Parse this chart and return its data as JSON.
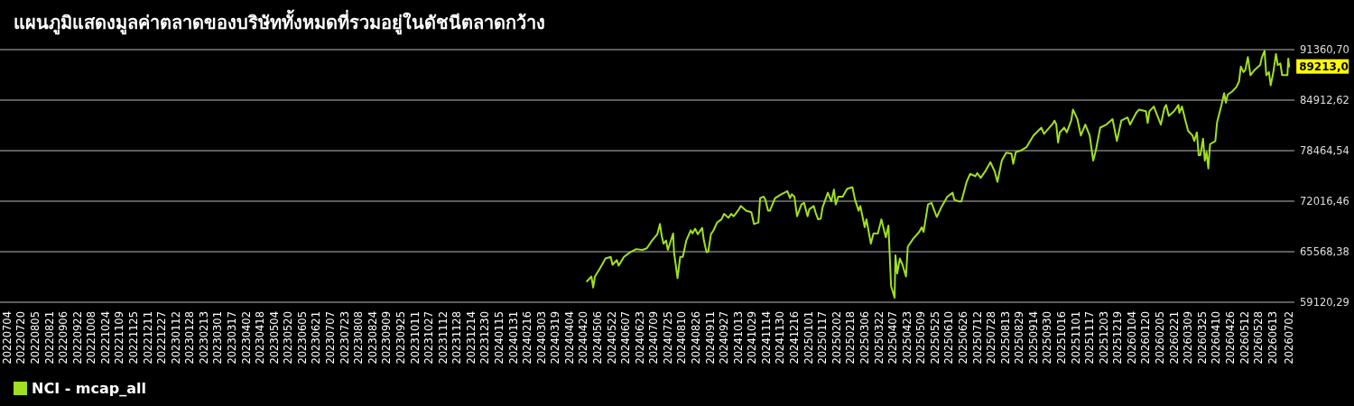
{
  "chart_data": {
    "type": "line",
    "title": "แผนภูมิแสดงมูลค่าตลาดของบริษัททั้งหมดที่รวมอยู่ในดัชนีตลาดกว้าง",
    "xlim": [
      "2022-06-26",
      "2026-07-08"
    ],
    "ylim": [
      59120.29,
      91360.7
    ],
    "yticks": [
      {
        "value": 59120.29,
        "label": "59120,29"
      },
      {
        "value": 65568.38,
        "label": "65568,38"
      },
      {
        "value": 72016.46,
        "label": "72016,46"
      },
      {
        "value": 78464.54,
        "label": "78464,54"
      },
      {
        "value": 84912.62,
        "label": "84912,62"
      },
      {
        "value": 91360.7,
        "label": "91360,70"
      }
    ],
    "xticks": [
      {
        "value": "2022-07-04",
        "label": "20220704"
      },
      {
        "value": "2022-07-20",
        "label": "20220720"
      },
      {
        "value": "2022-08-05",
        "label": "20220805"
      },
      {
        "value": "2022-08-21",
        "label": "20220821"
      },
      {
        "value": "2022-09-06",
        "label": "20220906"
      },
      {
        "value": "2022-09-22",
        "label": "20220922"
      },
      {
        "value": "2022-10-08",
        "label": "20221008"
      },
      {
        "value": "2022-10-24",
        "label": "20221024"
      },
      {
        "value": "2022-11-09",
        "label": "20221109"
      },
      {
        "value": "2022-11-25",
        "label": "20221125"
      },
      {
        "value": "2022-12-11",
        "label": "20221211"
      },
      {
        "value": "2022-12-27",
        "label": "20221227"
      },
      {
        "value": "2023-01-12",
        "label": "20230112"
      },
      {
        "value": "2023-01-28",
        "label": "20230128"
      },
      {
        "value": "2023-02-13",
        "label": "20230213"
      },
      {
        "value": "2023-03-01",
        "label": "20230301"
      },
      {
        "value": "2023-03-17",
        "label": "20230317"
      },
      {
        "value": "2023-04-02",
        "label": "20230402"
      },
      {
        "value": "2023-04-18",
        "label": "20230418"
      },
      {
        "value": "2023-05-04",
        "label": "20230504"
      },
      {
        "value": "2023-05-20",
        "label": "20230520"
      },
      {
        "value": "2023-06-05",
        "label": "20230605"
      },
      {
        "value": "2023-06-21",
        "label": "20230621"
      },
      {
        "value": "2023-07-07",
        "label": "20230707"
      },
      {
        "value": "2023-07-23",
        "label": "20230723"
      },
      {
        "value": "2023-08-08",
        "label": "20230808"
      },
      {
        "value": "2023-08-24",
        "label": "20230824"
      },
      {
        "value": "2023-09-09",
        "label": "20230909"
      },
      {
        "value": "2023-09-25",
        "label": "20230925"
      },
      {
        "value": "2023-10-11",
        "label": "20231011"
      },
      {
        "value": "2023-10-27",
        "label": "20231027"
      },
      {
        "value": "2023-11-12",
        "label": "20231112"
      },
      {
        "value": "2023-11-28",
        "label": "20231128"
      },
      {
        "value": "2023-12-14",
        "label": "20231214"
      },
      {
        "value": "2023-12-30",
        "label": "20231230"
      },
      {
        "value": "2024-01-15",
        "label": "20240115"
      },
      {
        "value": "2024-01-31",
        "label": "20240131"
      },
      {
        "value": "2024-02-16",
        "label": "20240216"
      },
      {
        "value": "2024-03-03",
        "label": "20240303"
      },
      {
        "value": "2024-03-19",
        "label": "20240319"
      },
      {
        "value": "2024-04-04",
        "label": "20240404"
      },
      {
        "value": "2024-04-20",
        "label": "20240420"
      },
      {
        "value": "2024-05-06",
        "label": "20240506"
      },
      {
        "value": "2024-05-22",
        "label": "20240522"
      },
      {
        "value": "2024-06-07",
        "label": "20240607"
      },
      {
        "value": "2024-06-23",
        "label": "20240623"
      },
      {
        "value": "2024-07-09",
        "label": "20240709"
      },
      {
        "value": "2024-07-25",
        "label": "20240725"
      },
      {
        "value": "2024-08-10",
        "label": "20240810"
      },
      {
        "value": "2024-08-26",
        "label": "20240826"
      },
      {
        "value": "2024-09-11",
        "label": "20240911"
      },
      {
        "value": "2024-09-27",
        "label": "20240927"
      },
      {
        "value": "2024-10-13",
        "label": "20241013"
      },
      {
        "value": "2024-10-29",
        "label": "20241029"
      },
      {
        "value": "2024-11-14",
        "label": "20241114"
      },
      {
        "value": "2024-11-30",
        "label": "20241130"
      },
      {
        "value": "2024-12-16",
        "label": "20241216"
      },
      {
        "value": "2025-01-01",
        "label": "20250101"
      },
      {
        "value": "2025-01-17",
        "label": "20250117"
      },
      {
        "value": "2025-02-02",
        "label": "20250202"
      },
      {
        "value": "2025-02-18",
        "label": "20250218"
      },
      {
        "value": "2025-03-06",
        "label": "20250306"
      },
      {
        "value": "2025-03-22",
        "label": "20250322"
      },
      {
        "value": "2025-04-07",
        "label": "20250407"
      },
      {
        "value": "2025-04-23",
        "label": "20250423"
      },
      {
        "value": "2025-05-09",
        "label": "20250509"
      },
      {
        "value": "2025-05-25",
        "label": "20250525"
      },
      {
        "value": "2025-06-10",
        "label": "20250610"
      },
      {
        "value": "2025-06-26",
        "label": "20250626"
      },
      {
        "value": "2025-07-12",
        "label": "20250712"
      },
      {
        "value": "2025-07-28",
        "label": "20250728"
      },
      {
        "value": "2025-08-13",
        "label": "20250813"
      },
      {
        "value": "2025-08-29",
        "label": "20250829"
      },
      {
        "value": "2025-09-14",
        "label": "20250914"
      },
      {
        "value": "2025-09-30",
        "label": "20250930"
      },
      {
        "value": "2025-10-16",
        "label": "20251016"
      },
      {
        "value": "2025-11-01",
        "label": "20251101"
      },
      {
        "value": "2025-11-17",
        "label": "20251117"
      },
      {
        "value": "2025-12-03",
        "label": "20251203"
      },
      {
        "value": "2025-12-19",
        "label": "20251219"
      },
      {
        "value": "2026-01-04",
        "label": "20260104"
      },
      {
        "value": "2026-01-20",
        "label": "20260120"
      },
      {
        "value": "2026-02-05",
        "label": "20260205"
      },
      {
        "value": "2026-02-21",
        "label": "20260221"
      },
      {
        "value": "2026-03-09",
        "label": "20260309"
      },
      {
        "value": "2026-03-25",
        "label": "20260325"
      },
      {
        "value": "2026-04-10",
        "label": "20260410"
      },
      {
        "value": "2026-04-26",
        "label": "20260426"
      },
      {
        "value": "2026-05-12",
        "label": "20260512"
      },
      {
        "value": "2026-05-28",
        "label": "20260528"
      },
      {
        "value": "2026-06-13",
        "label": "20260613"
      },
      {
        "value": "2026-07-02",
        "label": "20260702"
      }
    ],
    "x": [
      "2024-04-24",
      "2024-04-29",
      "2024-05-01",
      "2024-05-03",
      "2024-05-09",
      "2024-05-15",
      "2024-05-21",
      "2024-05-23",
      "2024-05-28",
      "2024-05-30",
      "2024-06-05",
      "2024-06-12",
      "2024-06-19",
      "2024-06-26",
      "2024-07-01",
      "2024-07-07",
      "2024-07-13",
      "2024-07-16",
      "2024-07-18",
      "2024-07-20",
      "2024-07-23",
      "2024-07-25",
      "2024-07-31",
      "2024-08-01",
      "2024-08-05",
      "2024-08-08",
      "2024-08-11",
      "2024-08-15",
      "2024-08-20",
      "2024-08-22",
      "2024-08-25",
      "2024-08-28",
      "2024-09-02",
      "2024-09-04",
      "2024-09-07",
      "2024-09-09",
      "2024-09-12",
      "2024-09-15",
      "2024-09-19",
      "2024-09-24",
      "2024-09-27",
      "2024-10-02",
      "2024-10-05",
      "2024-10-08",
      "2024-10-14",
      "2024-10-16",
      "2024-10-22",
      "2024-10-28",
      "2024-10-31",
      "2024-11-05",
      "2024-11-07",
      "2024-11-11",
      "2024-11-13",
      "2024-11-16",
      "2024-11-18",
      "2024-11-24",
      "2024-12-01",
      "2024-12-08",
      "2024-12-11",
      "2024-12-13",
      "2024-12-16",
      "2024-12-19",
      "2024-12-24",
      "2024-12-27",
      "2024-12-31",
      "2025-01-02",
      "2025-01-07",
      "2025-01-09",
      "2025-01-12",
      "2025-01-15",
      "2025-01-17",
      "2025-01-23",
      "2025-01-27",
      "2025-01-30",
      "2025-02-01",
      "2025-02-04",
      "2025-02-09",
      "2025-02-14",
      "2025-02-20",
      "2025-02-23",
      "2025-02-27",
      "2025-03-01",
      "2025-03-06",
      "2025-03-08",
      "2025-03-13",
      "2025-03-16",
      "2025-03-21",
      "2025-03-25",
      "2025-03-30",
      "2025-04-02",
      "2025-04-05",
      "2025-04-09",
      "2025-04-10",
      "2025-04-12",
      "2025-04-15",
      "2025-04-18",
      "2025-04-22",
      "2025-04-24",
      "2025-04-30",
      "2025-05-07",
      "2025-05-10",
      "2025-05-12",
      "2025-05-17",
      "2025-05-21",
      "2025-05-27",
      "2025-06-01",
      "2025-06-08",
      "2025-06-14",
      "2025-06-16",
      "2025-06-21",
      "2025-06-24",
      "2025-06-30",
      "2025-07-04",
      "2025-07-10",
      "2025-07-12",
      "2025-07-16",
      "2025-07-21",
      "2025-07-27",
      "2025-08-01",
      "2025-08-04",
      "2025-08-09",
      "2025-08-14",
      "2025-08-20",
      "2025-08-22",
      "2025-08-25",
      "2025-08-31",
      "2025-09-06",
      "2025-09-14",
      "2025-09-23",
      "2025-09-26",
      "2025-10-06",
      "2025-10-08",
      "2025-10-10",
      "2025-10-12",
      "2025-10-14",
      "2025-10-19",
      "2025-10-22",
      "2025-10-27",
      "2025-10-29",
      "2025-11-03",
      "2025-11-07",
      "2025-11-12",
      "2025-11-17",
      "2025-11-21",
      "2025-11-24",
      "2025-11-29",
      "2025-12-06",
      "2025-12-13",
      "2025-12-18",
      "2025-12-23",
      "2025-12-30",
      "2026-01-02",
      "2026-01-09",
      "2026-01-12",
      "2026-01-20",
      "2026-01-22",
      "2026-01-24",
      "2026-01-29",
      "2026-02-06",
      "2026-02-10",
      "2026-02-12",
      "2026-02-15",
      "2026-02-21",
      "2026-02-26",
      "2026-02-27",
      "2026-03-02",
      "2026-03-06",
      "2026-03-09",
      "2026-03-14",
      "2026-03-16",
      "2026-03-19",
      "2026-03-21",
      "2026-03-23",
      "2026-03-26",
      "2026-03-28",
      "2026-03-30",
      "2026-04-01",
      "2026-04-03",
      "2026-04-09",
      "2026-04-11",
      "2026-04-16",
      "2026-04-19",
      "2026-04-21",
      "2026-04-23",
      "2026-04-28",
      "2026-05-03",
      "2026-05-06",
      "2026-05-08",
      "2026-05-11",
      "2026-05-13",
      "2026-05-16",
      "2026-05-19",
      "2026-05-24",
      "2026-05-30",
      "2026-06-01",
      "2026-06-04",
      "2026-06-06",
      "2026-06-09",
      "2026-06-11",
      "2026-06-14",
      "2026-06-17",
      "2026-06-19",
      "2026-06-22",
      "2026-06-24",
      "2026-06-30",
      "2026-07-01",
      "2026-07-02"
    ],
    "series": [
      {
        "name": "NCI - mcap_all",
        "color": "#a0e020",
        "values": [
          61800,
          62400,
          61000,
          62400,
          63500,
          64700,
          64900,
          63900,
          64500,
          63800,
          64900,
          65500,
          65900,
          65800,
          66000,
          67000,
          67800,
          69100,
          67600,
          66600,
          67000,
          65800,
          67900,
          65500,
          62200,
          64900,
          64900,
          67000,
          68300,
          67900,
          68500,
          67800,
          68600,
          67000,
          65500,
          65600,
          67800,
          68300,
          69300,
          69700,
          70400,
          69900,
          70400,
          70100,
          71000,
          71400,
          70800,
          70600,
          69100,
          69300,
          72400,
          72600,
          72200,
          70800,
          70800,
          72400,
          72900,
          73300,
          72400,
          72900,
          72600,
          70100,
          71600,
          71800,
          70100,
          71000,
          71400,
          70600,
          69700,
          69800,
          71200,
          73100,
          72000,
          73500,
          71600,
          72600,
          72600,
          73600,
          73800,
          72200,
          70800,
          71400,
          68700,
          69700,
          66600,
          67900,
          67900,
          69700,
          67400,
          68900,
          61200,
          59700,
          65100,
          62800,
          64700,
          63900,
          62400,
          66200,
          67200,
          68100,
          68700,
          68100,
          71600,
          71800,
          70000,
          71200,
          72600,
          73100,
          72200,
          72000,
          72000,
          74500,
          75500,
          75200,
          75600,
          75000,
          75800,
          77000,
          75800,
          74500,
          77200,
          78200,
          78100,
          76800,
          78300,
          78500,
          78900,
          80400,
          81400,
          80600,
          81900,
          82300,
          81800,
          79500,
          80800,
          81400,
          80800,
          82300,
          83700,
          82500,
          80400,
          81800,
          80400,
          77200,
          78500,
          81400,
          81800,
          82500,
          79700,
          82300,
          82700,
          81800,
          83300,
          83700,
          83500,
          82000,
          83500,
          84100,
          81800,
          83900,
          84300,
          82900,
          83500,
          84300,
          83300,
          84100,
          82300,
          81000,
          80400,
          79700,
          80800,
          77900,
          77900,
          80000,
          77200,
          78300,
          76200,
          79300,
          79700,
          82100,
          84300,
          85800,
          84600,
          85600,
          86000,
          86600,
          87300,
          89200,
          88500,
          88700,
          90400,
          88100,
          88800,
          89400,
          90400,
          91200,
          88100,
          88500,
          86800,
          88500,
          90800,
          89400,
          89600,
          88100,
          88100,
          90200,
          89213
        ]
      }
    ],
    "grid": "y",
    "legend": "bottom left",
    "annotations": [
      {
        "text": "89213,0",
        "x": "2026-07-02",
        "y": 89213
      }
    ]
  }
}
